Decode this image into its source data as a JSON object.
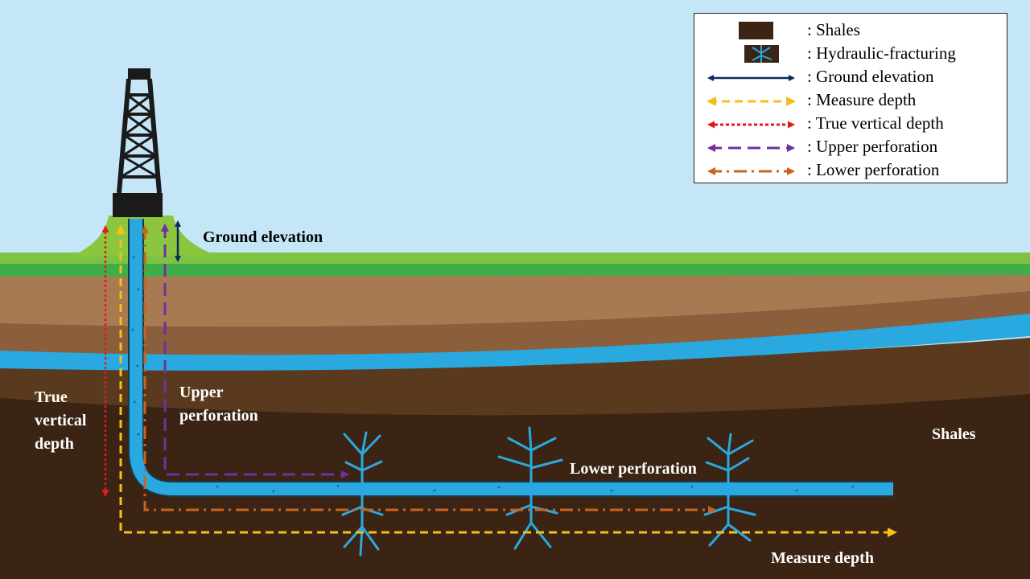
{
  "labels": {
    "ground_elevation": "Ground elevation",
    "true_vertical_depth_1": "True",
    "true_vertical_depth_2": "vertical",
    "true_vertical_depth_3": "depth",
    "upper_perforation_1": "Upper",
    "upper_perforation_2": "perforation",
    "lower_perforation": "Lower perforation",
    "shales": "Shales",
    "measure_depth": "Measure depth"
  },
  "legend": {
    "items": [
      {
        "label": ": Shales",
        "icon": "shale-swatch-icon"
      },
      {
        "label": ": Hydraulic-fracturing",
        "icon": "fracture-swatch-icon"
      },
      {
        "label": ": Ground elevation",
        "icon": "solid-double-arrow-icon",
        "color": "#0d2a5c"
      },
      {
        "label": ": Measure depth",
        "icon": "dashed-double-arrow-icon",
        "color": "#f5c01a"
      },
      {
        "label": ": True vertical depth",
        "icon": "dotted-double-arrow-icon",
        "color": "#e01b1b"
      },
      {
        "label": ": Upper perforation",
        "icon": "long-dash-double-arrow-icon",
        "color": "#7030a0"
      },
      {
        "label": ": Lower perforation",
        "icon": "dash-dot-double-arrow-icon",
        "color": "#c8641e"
      }
    ]
  },
  "colors": {
    "sky": "#c5e6f7",
    "grass": "#7dc242",
    "soil_light": "#a87a52",
    "soil_mid": "#8b5e3c",
    "aquifer": "#2aa9e0",
    "soil_dark": "#5a3a1e",
    "shale": "#3b2414",
    "well": "#2aa9e0",
    "derrick": "#1a1a1a"
  }
}
